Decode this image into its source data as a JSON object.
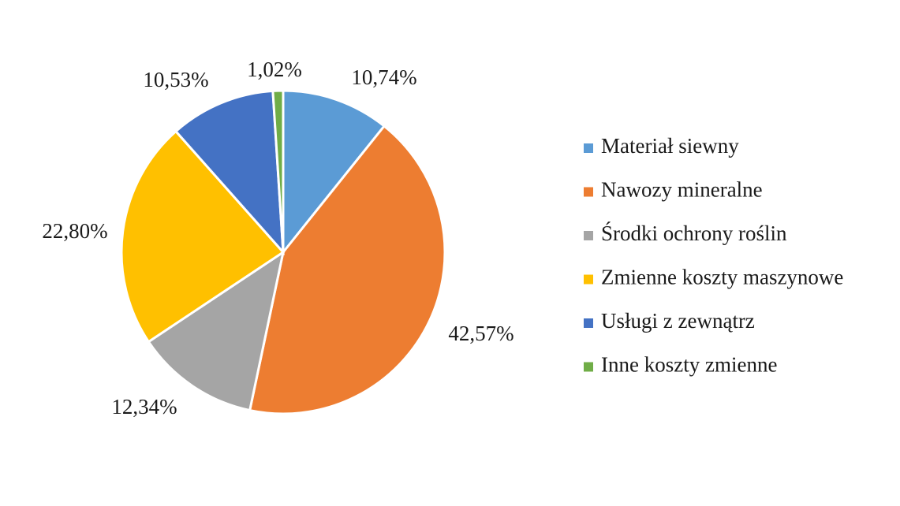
{
  "chart_data": {
    "type": "pie",
    "title": "",
    "legend_position": "right",
    "slices": [
      {
        "name": "Materiał siewny",
        "value": 10.74,
        "label": "10,74%",
        "color": "#5B9BD5"
      },
      {
        "name": "Nawozy mineralne",
        "value": 42.57,
        "label": "42,57%",
        "color": "#ED7D31"
      },
      {
        "name": "Środki ochrony roślin",
        "value": 12.34,
        "label": "12,34%",
        "color": "#A5A5A5"
      },
      {
        "name": "Zmienne koszty maszynowe",
        "value": 22.8,
        "label": "22,80%",
        "color": "#FFC000"
      },
      {
        "name": "Usługi z zewnątrz",
        "value": 10.53,
        "label": "10,53%",
        "color": "#4472C4"
      },
      {
        "name": "Inne koszty zmienne",
        "value": 1.02,
        "label": "1,02%",
        "color": "#70AD47"
      }
    ]
  }
}
